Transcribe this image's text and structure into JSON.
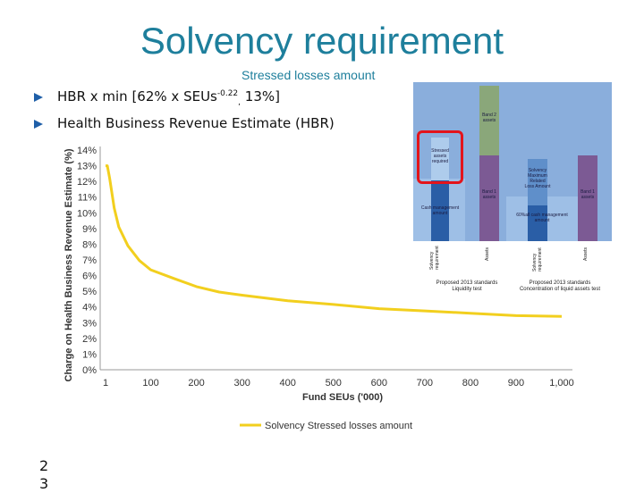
{
  "slide": {
    "title": "Solvency requirement",
    "subtitle": "Stressed losses amount",
    "page_number": "2\n3",
    "bullets": [
      {
        "pre": "HBR x min [62% x SEUs",
        "sup": "-0.22",
        "sub": ",",
        "post": " 13%]"
      },
      {
        "text": "Health Business Revenue Estimate (HBR)"
      }
    ]
  },
  "colors": {
    "title": "#1e7f9c",
    "line": "#f2cf1e",
    "inset_bg": "#8aaedc",
    "inset_purple": "#7c5a94",
    "inset_dark_blue": "#2a5ea6",
    "inset_light_blue": "#aeccec",
    "highlight": "#e3141b"
  },
  "chart_data": {
    "type": "line",
    "xlabel": "Fund SEUs ('000)",
    "ylabel": "Charge on Health Business Revenue Estimate (%)",
    "xlim": [
      1,
      1000
    ],
    "ylim": [
      0,
      14
    ],
    "x_ticks": [
      "1",
      "100",
      "200",
      "300",
      "400",
      "500",
      "600",
      "700",
      "800",
      "900",
      "1,000"
    ],
    "y_ticks": [
      "0%",
      "1%",
      "2%",
      "3%",
      "4%",
      "5%",
      "6%",
      "7%",
      "8%",
      "9%",
      "10%",
      "11%",
      "12%",
      "13%",
      "14%"
    ],
    "grid": false,
    "legend_position": "bottom",
    "series": [
      {
        "name": "Solvency Stressed losses amount",
        "x": [
          1,
          3,
          5,
          10,
          20,
          30,
          50,
          75,
          100,
          150,
          200,
          250,
          300,
          400,
          500,
          600,
          700,
          800,
          900,
          1000
        ],
        "y": [
          13.0,
          13.0,
          13.0,
          12.2,
          10.3,
          9.1,
          7.9,
          6.96,
          6.37,
          5.82,
          5.3,
          4.95,
          4.75,
          4.4,
          4.16,
          3.89,
          3.75,
          3.6,
          3.45,
          3.4
        ]
      }
    ]
  },
  "inset": {
    "label_band2_top": "Band 2\nassets",
    "label_stressed": "Stressed\nassets\nrequired",
    "label_band1_left": "Band 1\nassets",
    "label_solvency_max": "Solvency\nMaximum\nRelated\nLoss Amount",
    "label_band1_right": "Band 1\nassets",
    "label_cash_mgmt_left": "Cash management\namount",
    "label_cash_mgmt_right": "60%all cash management\namount",
    "axis_solvency_left": "Solvency\nrequirement",
    "axis_assets_left": "Assets",
    "axis_solvency_right": "Solvency\nrequirement",
    "axis_assets_right": "Assets",
    "caption_left": "Proposed 2013 standards\nLiquidity test",
    "caption_right": "Proposed 2013 standards\nConcentration of liquid assets test"
  }
}
